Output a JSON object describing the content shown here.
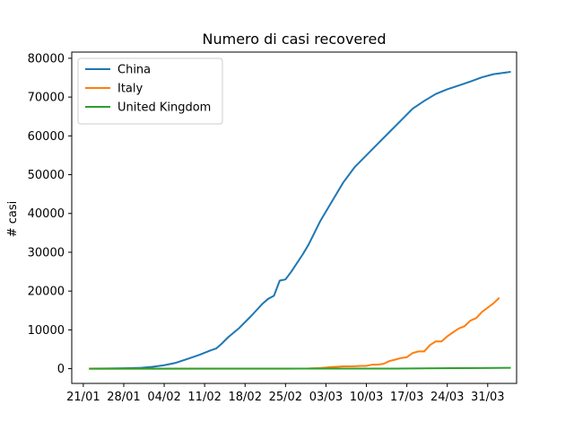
{
  "chart_data": {
    "type": "line",
    "title": "Numero di casi recovered",
    "xlabel": "",
    "ylabel": "# casi",
    "ylim": [
      -3800,
      81600
    ],
    "xlim": [
      "2020-01-19",
      "2020-04-05"
    ],
    "grid": false,
    "legend_position": "top-left",
    "x_ticks": [
      {
        "date": "2020-01-21",
        "label": "21/01"
      },
      {
        "date": "2020-01-28",
        "label": "28/01"
      },
      {
        "date": "2020-02-04",
        "label": "04/02"
      },
      {
        "date": "2020-02-11",
        "label": "11/02"
      },
      {
        "date": "2020-02-18",
        "label": "18/02"
      },
      {
        "date": "2020-02-25",
        "label": "25/02"
      },
      {
        "date": "2020-03-03",
        "label": "03/03"
      },
      {
        "date": "2020-03-10",
        "label": "10/03"
      },
      {
        "date": "2020-03-17",
        "label": "17/03"
      },
      {
        "date": "2020-03-24",
        "label": "24/03"
      },
      {
        "date": "2020-03-31",
        "label": "31/03"
      }
    ],
    "y_ticks": [
      0,
      10000,
      20000,
      30000,
      40000,
      50000,
      60000,
      70000,
      80000
    ],
    "series": [
      {
        "name": "China",
        "color": "#1f77b4",
        "points": [
          [
            "2020-01-22",
            28
          ],
          [
            "2020-01-25",
            39
          ],
          [
            "2020-01-28",
            100
          ],
          [
            "2020-01-31",
            220
          ],
          [
            "2020-02-02",
            470
          ],
          [
            "2020-02-04",
            890
          ],
          [
            "2020-02-06",
            1500
          ],
          [
            "2020-02-08",
            2500
          ],
          [
            "2020-02-10",
            3500
          ],
          [
            "2020-02-12",
            4700
          ],
          [
            "2020-02-13",
            5200
          ],
          [
            "2020-02-14",
            6500
          ],
          [
            "2020-02-15",
            8000
          ],
          [
            "2020-02-17",
            10500
          ],
          [
            "2020-02-19",
            13500
          ],
          [
            "2020-02-21",
            16700
          ],
          [
            "2020-02-22",
            18000
          ],
          [
            "2020-02-23",
            18800
          ],
          [
            "2020-02-24",
            22700
          ],
          [
            "2020-02-25",
            23000
          ],
          [
            "2020-02-26",
            25000
          ],
          [
            "2020-02-28",
            29500
          ],
          [
            "2020-02-29",
            32000
          ],
          [
            "2020-03-02",
            38000
          ],
          [
            "2020-03-04",
            43000
          ],
          [
            "2020-03-06",
            48000
          ],
          [
            "2020-03-08",
            52000
          ],
          [
            "2020-03-10",
            55000
          ],
          [
            "2020-03-12",
            58000
          ],
          [
            "2020-03-14",
            61000
          ],
          [
            "2020-03-16",
            64000
          ],
          [
            "2020-03-18",
            67000
          ],
          [
            "2020-03-20",
            69000
          ],
          [
            "2020-03-22",
            70800
          ],
          [
            "2020-03-24",
            72000
          ],
          [
            "2020-03-26",
            73000
          ],
          [
            "2020-03-28",
            74000
          ],
          [
            "2020-03-30",
            75100
          ],
          [
            "2020-04-01",
            75900
          ],
          [
            "2020-04-03",
            76300
          ],
          [
            "2020-04-04",
            76500
          ]
        ]
      },
      {
        "name": "Italy",
        "color": "#ff7f0e",
        "points": [
          [
            "2020-01-22",
            0
          ],
          [
            "2020-02-20",
            0
          ],
          [
            "2020-02-25",
            1
          ],
          [
            "2020-02-29",
            46
          ],
          [
            "2020-03-02",
            160
          ],
          [
            "2020-03-04",
            414
          ],
          [
            "2020-03-06",
            589
          ],
          [
            "2020-03-08",
            622
          ],
          [
            "2020-03-09",
            724
          ],
          [
            "2020-03-10",
            724
          ],
          [
            "2020-03-11",
            1045
          ],
          [
            "2020-03-12",
            1045
          ],
          [
            "2020-03-13",
            1258
          ],
          [
            "2020-03-14",
            1966
          ],
          [
            "2020-03-15",
            2335
          ],
          [
            "2020-03-16",
            2749
          ],
          [
            "2020-03-17",
            2941
          ],
          [
            "2020-03-18",
            4025
          ],
          [
            "2020-03-19",
            4440
          ],
          [
            "2020-03-20",
            4440
          ],
          [
            "2020-03-21",
            6072
          ],
          [
            "2020-03-22",
            7024
          ],
          [
            "2020-03-23",
            7024
          ],
          [
            "2020-03-24",
            8326
          ],
          [
            "2020-03-25",
            9362
          ],
          [
            "2020-03-26",
            10361
          ],
          [
            "2020-03-27",
            10950
          ],
          [
            "2020-03-28",
            12384
          ],
          [
            "2020-03-29",
            13030
          ],
          [
            "2020-03-30",
            14620
          ],
          [
            "2020-03-31",
            15729
          ],
          [
            "2020-04-01",
            16847
          ],
          [
            "2020-04-02",
            18278
          ]
        ]
      },
      {
        "name": "United Kingdom",
        "color": "#2ca02c",
        "points": [
          [
            "2020-01-22",
            0
          ],
          [
            "2020-02-15",
            8
          ],
          [
            "2020-03-01",
            8
          ],
          [
            "2020-03-15",
            20
          ],
          [
            "2020-03-20",
            65
          ],
          [
            "2020-03-25",
            140
          ],
          [
            "2020-03-30",
            170
          ],
          [
            "2020-04-04",
            208
          ]
        ]
      }
    ]
  }
}
